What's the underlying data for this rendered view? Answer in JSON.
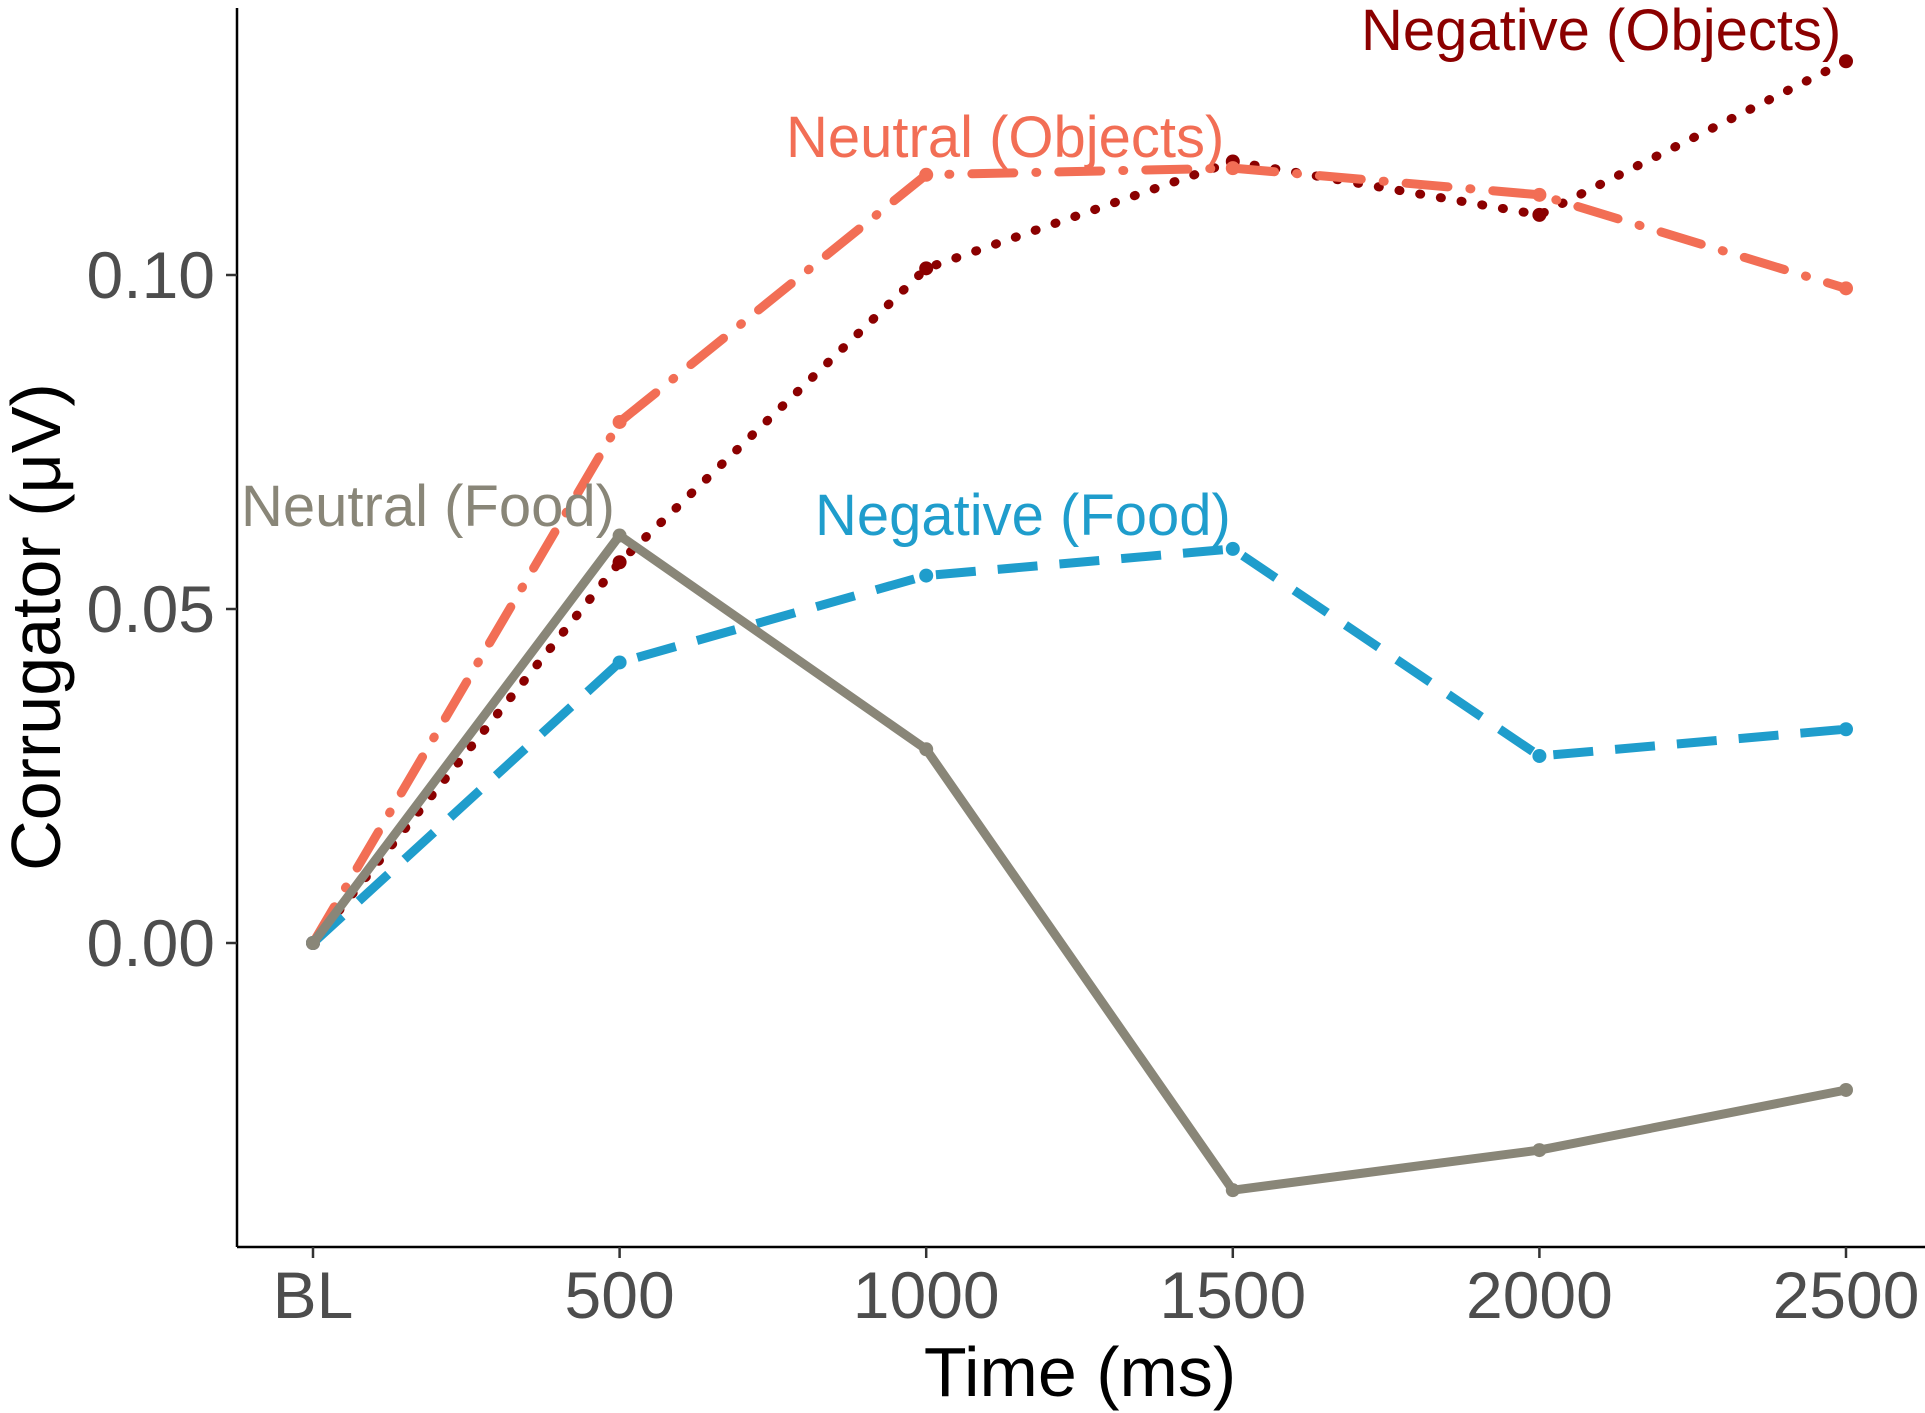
{
  "chart_data": {
    "type": "line",
    "title": "",
    "xlabel": "Time (ms)",
    "ylabel": "Corrugator (μV)",
    "categories": [
      "BL",
      "500",
      "1000",
      "1500",
      "2000",
      "2500"
    ],
    "y_ticks": [
      0.0,
      0.05,
      0.1
    ],
    "y_tick_labels": [
      "0.00",
      "0.05",
      "0.10"
    ],
    "ylim": [
      -0.045,
      0.14
    ],
    "grid": false,
    "legend": "direct labels on lines",
    "series": [
      {
        "name": "Negative (Objects)",
        "color": "#8b0000",
        "style": "dotted",
        "values": [
          0.0,
          0.057,
          0.101,
          0.117,
          0.109,
          0.132
        ]
      },
      {
        "name": "Neutral (Objects)",
        "color": "#f26e55",
        "style": "dashdot",
        "values": [
          0.0,
          0.078,
          0.115,
          0.116,
          0.112,
          0.098
        ]
      },
      {
        "name": "Negative (Food)",
        "color": "#1f9dcc",
        "style": "dashed",
        "values": [
          0.0,
          0.042,
          0.055,
          0.059,
          0.028,
          0.032
        ]
      },
      {
        "name": "Neutral (Food)",
        "color": "#898678",
        "style": "solid",
        "values": [
          0.0,
          0.061,
          0.029,
          -0.037,
          -0.031,
          -0.022
        ]
      }
    ]
  }
}
